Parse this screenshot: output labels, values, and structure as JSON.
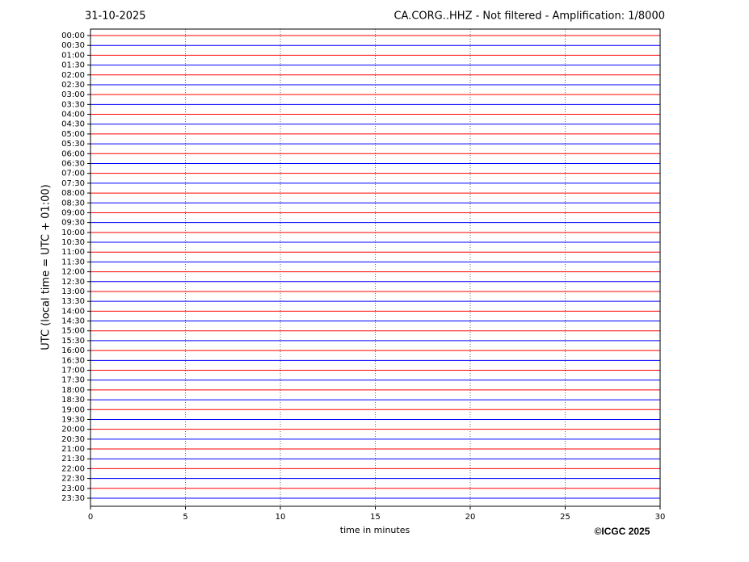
{
  "chart_data": {
    "type": "helicorder",
    "date": "31-10-2025",
    "title": "CA.CORG..HHZ - Not filtered - Amplification: 1/8000",
    "ylabel": "UTC (local time = UTC + 01:00)",
    "xlabel": "time in minutes",
    "copyright": "©ICGC 2025",
    "categories": [
      "00:00",
      "00:30",
      "01:00",
      "01:30",
      "02:00",
      "02:30",
      "03:00",
      "03:30",
      "04:00",
      "04:30",
      "05:00",
      "05:30",
      "06:00",
      "06:30",
      "07:00",
      "07:30",
      "08:00",
      "08:30",
      "09:00",
      "09:30",
      "10:00",
      "10:30",
      "11:00",
      "11:30",
      "12:00",
      "12:30",
      "13:00",
      "13:30",
      "14:00",
      "14:30",
      "15:00",
      "15:30",
      "16:00",
      "16:30",
      "17:00",
      "17:30",
      "18:00",
      "18:30",
      "19:00",
      "19:30",
      "20:00",
      "20:30",
      "21:00",
      "21:30",
      "22:00",
      "22:30",
      "23:00",
      "23:30"
    ],
    "colors": [
      "#ff0000",
      "#0000ff"
    ],
    "xlim": [
      0,
      30
    ],
    "xticks": [
      0,
      5,
      10,
      15,
      20,
      25,
      30
    ],
    "grid": true
  }
}
